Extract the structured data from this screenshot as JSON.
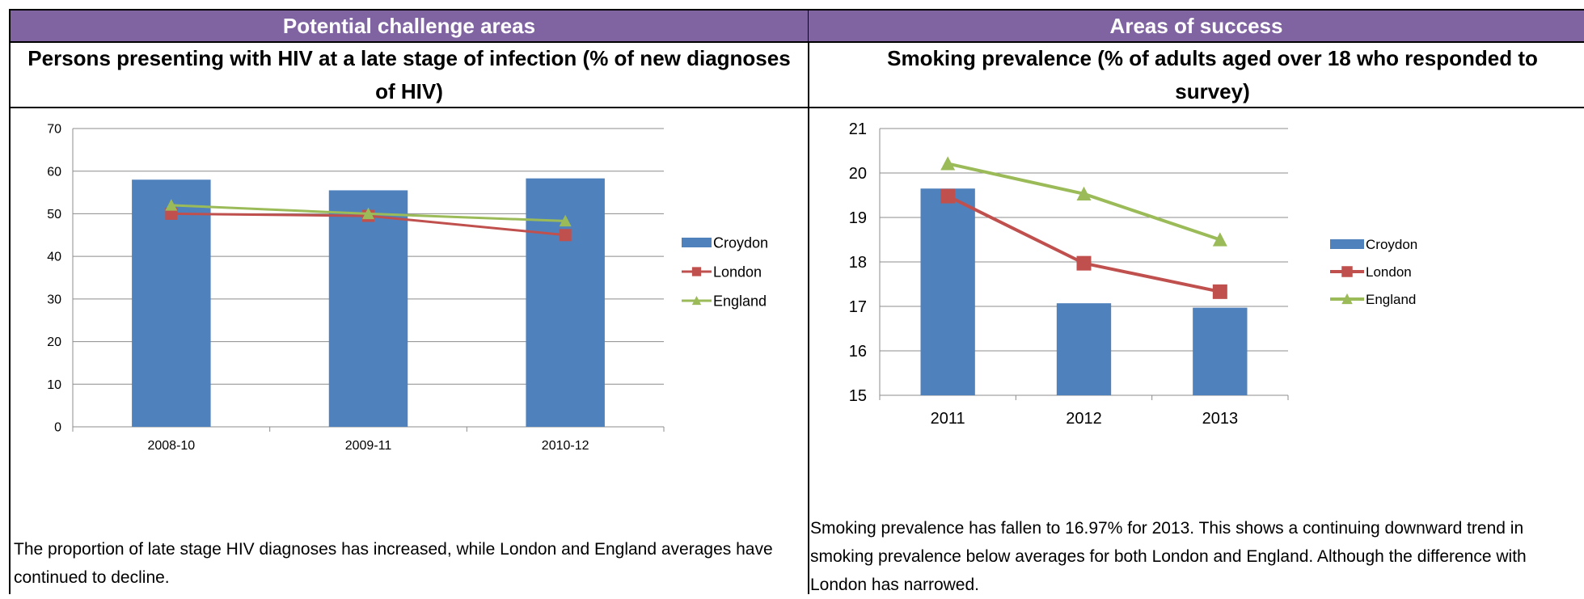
{
  "left_panel": {
    "header": "Potential challenge areas",
    "subtitle": "Persons presenting with HIV at a late stage of infection (% of new diagnoses of HIV)",
    "commentary": "The proportion of late stage HIV diagnoses has increased, while London and England averages have continued to decline."
  },
  "right_panel": {
    "header": "Areas of success",
    "subtitle": "Smoking prevalence (% of adults aged over 18 who responded to survey)",
    "commentary": "Smoking prevalence has fallen to 16.97% for 2013. This shows a continuing downward trend in smoking prevalence below averages for both London and England. Although the difference with London has narrowed."
  },
  "colors": {
    "Croydon": "#4f81bd",
    "London": "#c0504d",
    "England": "#9bbb59",
    "header_band": "#8064a2"
  },
  "chart_data": [
    {
      "type": "bar",
      "categories": [
        "2008-10",
        "2009-11",
        "2010-12"
      ],
      "series": [
        {
          "name": "Croydon",
          "kind": "bar",
          "values": [
            58,
            55.5,
            58.3
          ]
        },
        {
          "name": "London",
          "kind": "line",
          "marker": "square",
          "values": [
            50,
            49.5,
            45
          ]
        },
        {
          "name": "England",
          "kind": "line",
          "marker": "triangle",
          "values": [
            52,
            50,
            48.3
          ]
        }
      ],
      "ylim": [
        0,
        70
      ],
      "yticks": [
        0,
        10,
        20,
        30,
        40,
        50,
        60,
        70
      ],
      "grid": true,
      "legend": "right"
    },
    {
      "type": "bar",
      "categories": [
        "2011",
        "2012",
        "2013"
      ],
      "series": [
        {
          "name": "Croydon",
          "kind": "bar",
          "values": [
            19.65,
            17.07,
            16.97
          ]
        },
        {
          "name": "London",
          "kind": "line",
          "marker": "square",
          "values": [
            19.48,
            17.97,
            17.33
          ]
        },
        {
          "name": "England",
          "kind": "line",
          "marker": "triangle",
          "values": [
            20.21,
            19.53,
            18.5
          ]
        }
      ],
      "ylim": [
        15,
        21
      ],
      "yticks": [
        15,
        16,
        17,
        18,
        19,
        20,
        21
      ],
      "grid": true,
      "legend": "right"
    }
  ]
}
